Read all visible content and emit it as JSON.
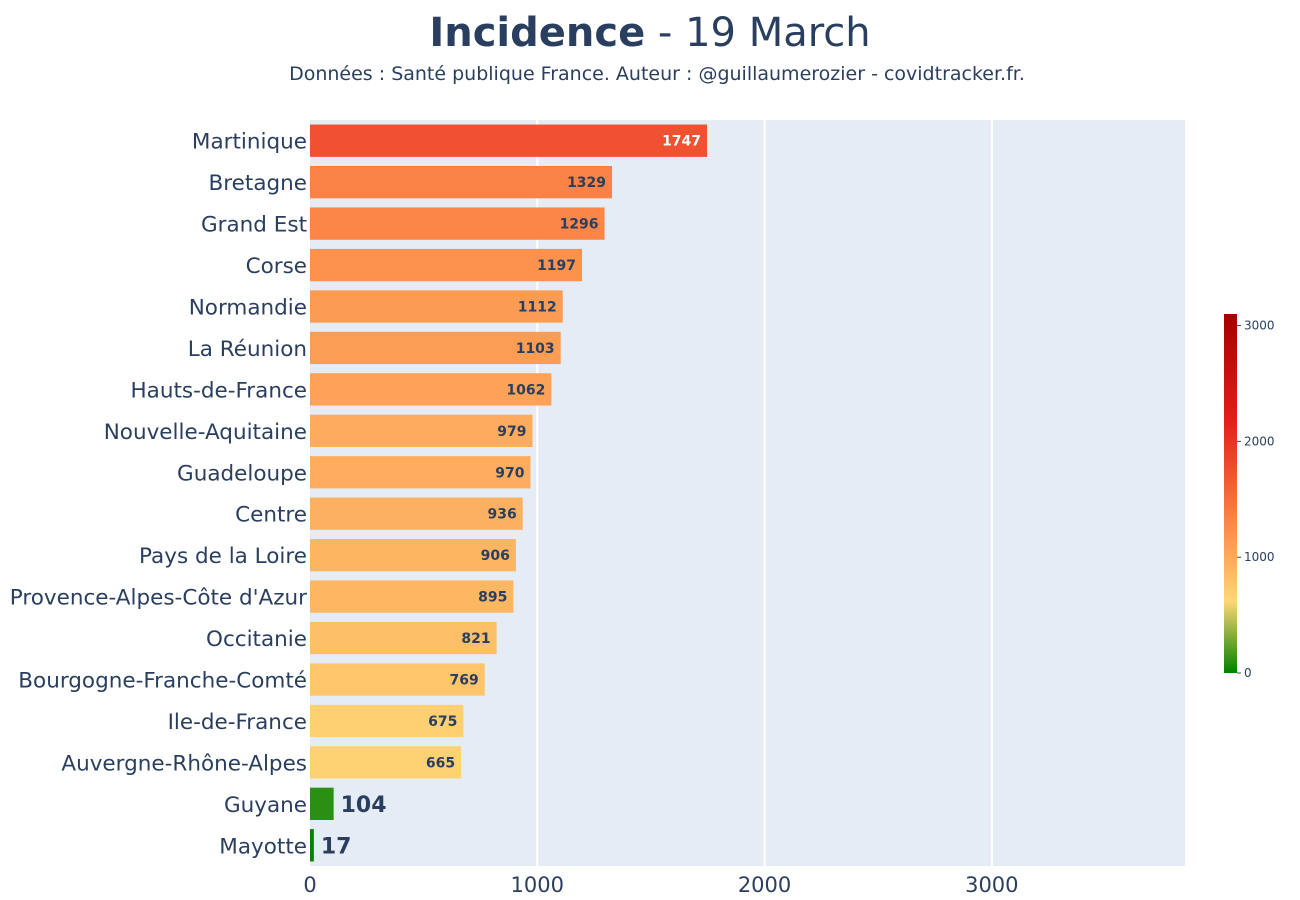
{
  "chart_data": {
    "type": "bar",
    "orientation": "horizontal",
    "title_bold": "Incidence",
    "title_rest": " - 19 March",
    "subtitle": "Données : Santé publique France. Auteur : @guillaumerozier - covidtracker.fr.",
    "categories": [
      "Martinique",
      "Bretagne",
      "Grand Est",
      "Corse",
      "Normandie",
      "La Réunion",
      "Hauts-de-France",
      "Nouvelle-Aquitaine",
      "Guadeloupe",
      "Centre",
      "Pays de la Loire",
      "Provence-Alpes-Côte d'Azur",
      "Occitanie",
      "Bourgogne-Franche-Comté",
      "Ile-de-France",
      "Auvergne-Rhône-Alpes",
      "Guyane",
      "Mayotte"
    ],
    "values": [
      1747,
      1329,
      1296,
      1197,
      1112,
      1103,
      1062,
      979,
      970,
      936,
      906,
      895,
      821,
      769,
      675,
      665,
      104,
      17
    ],
    "xlim": [
      0,
      3850
    ],
    "xticks": [
      0,
      1000,
      2000,
      3000
    ],
    "grid": true,
    "colorscale": {
      "min": 0,
      "max": 3100,
      "ticks": [
        0,
        1000,
        2000,
        3000
      ],
      "stops": [
        {
          "at": 0,
          "color": "#008000"
        },
        {
          "at": 0.2,
          "color": "#fed776"
        },
        {
          "at": 0.4,
          "color": "#fc8d4a"
        },
        {
          "at": 0.7,
          "color": "#e41f1c"
        },
        {
          "at": 1,
          "color": "#a50000"
        }
      ]
    },
    "colors": {
      "plot_bg": "#e5ecf6",
      "grid": "#ffffff",
      "text": "#2a3f5f",
      "label_dark": "#2a3f5f",
      "label_light": "#ffffff"
    }
  }
}
